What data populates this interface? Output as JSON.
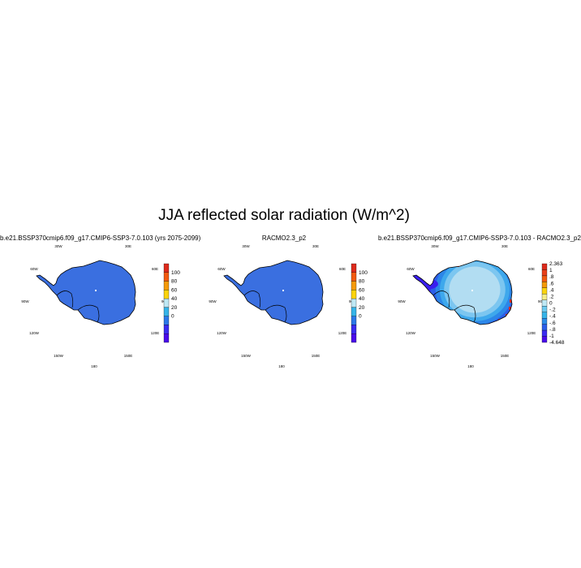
{
  "figure": {
    "title": "JJA reflected solar radiation (W/m^2)"
  },
  "chart_data": [
    {
      "type": "heatmap",
      "title": "b.e21.BSSP370cmip6.f09_g17.CMIP6-SSP3-7.0.103 (yrs 2075-2099)",
      "projection": "south polar stereographic",
      "lon_labels": [
        "30W",
        "30E",
        "60W",
        "60E",
        "90W",
        "90E",
        "120W",
        "120E",
        "150W",
        "150E",
        "180"
      ],
      "colorbar": {
        "labels": [
          "100",
          "80",
          "60",
          "40",
          "20",
          "0"
        ],
        "colors": [
          "#dd2a1c",
          "#f25a10",
          "#f59a0a",
          "#fbd40c",
          "#bfe8f4",
          "#36b4e8",
          "#2c78e8",
          "#3a2cf0",
          "#4a0aea"
        ]
      },
      "field_summary": "near-uniform ~10 W/m^2 over the ice sheet",
      "field_color": "#3a6fe0"
    },
    {
      "type": "heatmap",
      "title": "RACMO2.3_p2",
      "projection": "south polar stereographic",
      "lon_labels": [
        "30W",
        "30E",
        "60W",
        "60E",
        "90W",
        "90E",
        "120W",
        "120E",
        "150W",
        "150E",
        "180"
      ],
      "colorbar": {
        "labels": [
          "100",
          "80",
          "60",
          "40",
          "20",
          "0"
        ],
        "colors": [
          "#dd2a1c",
          "#f25a10",
          "#f59a0a",
          "#fbd40c",
          "#bfe8f4",
          "#36b4e8",
          "#2c78e8",
          "#3a2cf0",
          "#4a0aea"
        ]
      },
      "field_summary": "near-uniform ~10 W/m^2 over the ice sheet",
      "field_color": "#3a6fe0"
    },
    {
      "type": "heatmap",
      "title": "b.e21.BSSP370cmip6.f09_g17.CMIP6-SSP3-7.0.103 - RACMO2.3_p2",
      "projection": "south polar stereographic",
      "lon_labels": [
        "30W",
        "30E",
        "60W",
        "60E",
        "90W",
        "90E",
        "120W",
        "120E",
        "150W",
        "150E",
        "180"
      ],
      "colorbar": {
        "labels": [
          "2.363",
          "1",
          ".8",
          ".6",
          ".4",
          ".2",
          "0",
          "-.2",
          "-.4",
          "-.6",
          "-.8",
          "-1",
          "-4.648"
        ],
        "colors": [
          "#dd2a1c",
          "#e8401a",
          "#f25a10",
          "#f59a0a",
          "#fbd40c",
          "#f7ee88",
          "#bfe8f4",
          "#6dcaf0",
          "#36b4e8",
          "#2c8ce8",
          "#2c5ee8",
          "#3a2cf0",
          "#4a0aea"
        ]
      },
      "field_summary": "interior positive (~0 to 0.2), coastal negative down to -4.648, red spots at the coast",
      "rings": [
        {
          "value_band": "0 to .2",
          "color": "#b2ddf2"
        },
        {
          "value_band": "-.2 to 0",
          "color": "#7cc6f0"
        },
        {
          "value_band": "-.4 to -.2",
          "color": "#3ea8ec"
        },
        {
          "value_band": "-.6 to -.4",
          "color": "#2c86e8"
        },
        {
          "value_band": "-.8 to -.6",
          "color": "#2c5ee8"
        },
        {
          "value_band": "< -1",
          "color": "#3a1ef0"
        }
      ]
    }
  ]
}
